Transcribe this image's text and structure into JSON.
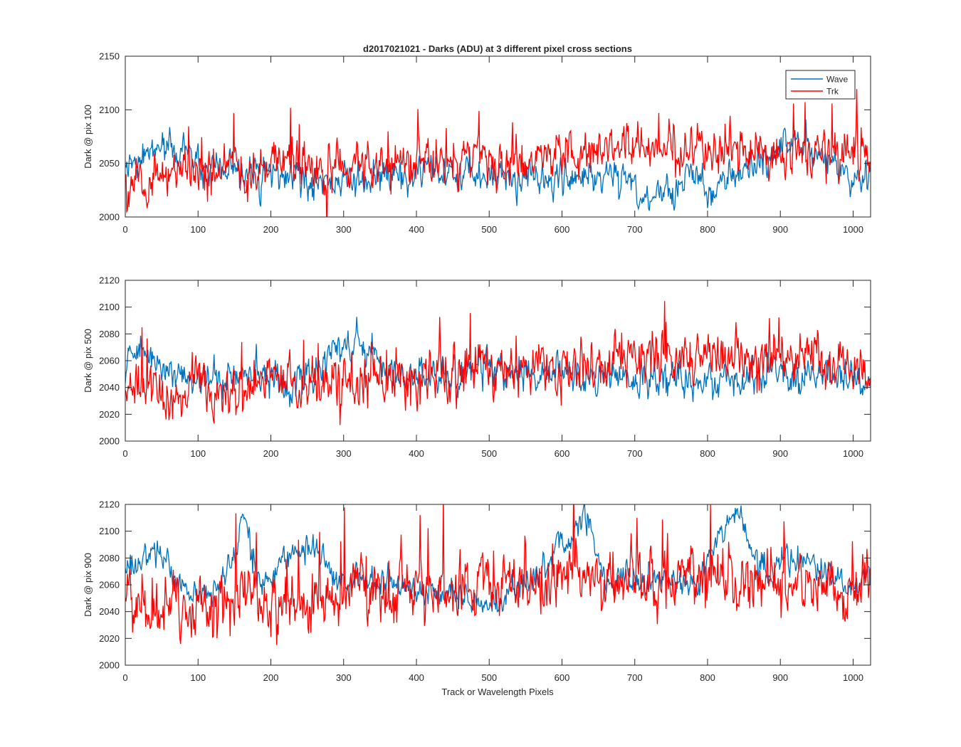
{
  "figure": {
    "title": "d2017021021 - Darks (ADU) at 3 different pixel cross sections",
    "xlabel": "Track or Wavelength Pixels"
  },
  "legend": {
    "position": "top-right",
    "entries": [
      {
        "name": "Wave",
        "color": "#0072BD"
      },
      {
        "name": "Trk",
        "color": "#FF0000"
      }
    ]
  },
  "chart_data": [
    {
      "type": "line",
      "ylabel": "Dark @ pix 100",
      "xlim": [
        0,
        1024
      ],
      "ylim": [
        2000,
        2150
      ],
      "xticks": [
        0,
        100,
        200,
        300,
        400,
        500,
        600,
        700,
        800,
        900,
        1000
      ],
      "yticks": [
        2000,
        2050,
        2100,
        2150
      ],
      "grid": false,
      "series": [
        {
          "name": "Wave",
          "color": "#0072BD",
          "noise": 7,
          "x": [
            0,
            10,
            20,
            30,
            40,
            50,
            60,
            70,
            80,
            88,
            95,
            100,
            150,
            200,
            240,
            250,
            300,
            400,
            410,
            450,
            500,
            550,
            600,
            650,
            690,
            700,
            720,
            730,
            760,
            775,
            790,
            800,
            850,
            880,
            915,
            925,
            950,
            1000,
            1024
          ],
          "values": [
            2047,
            2043,
            2050,
            2060,
            2062,
            2065,
            2062,
            2060,
            2063,
            2068,
            2055,
            2042,
            2040,
            2040,
            2035,
            2030,
            2033,
            2038,
            2040,
            2038,
            2040,
            2037,
            2035,
            2040,
            2035,
            2030,
            2015,
            2020,
            2030,
            2045,
            2030,
            2022,
            2045,
            2055,
            2070,
            2068,
            2060,
            2035,
            2036
          ]
        },
        {
          "name": "Trk",
          "color": "#FF0000",
          "noise": 10,
          "x": [
            0,
            20,
            50,
            100,
            200,
            300,
            400,
            500,
            600,
            700,
            800,
            900,
            1024
          ],
          "values": [
            2040,
            2040,
            2038,
            2040,
            2045,
            2048,
            2050,
            2055,
            2058,
            2065,
            2062,
            2060,
            2060
          ]
        }
      ]
    },
    {
      "type": "line",
      "ylabel": "Dark @ pix 500",
      "xlim": [
        0,
        1024
      ],
      "ylim": [
        2000,
        2120
      ],
      "xticks": [
        0,
        100,
        200,
        300,
        400,
        500,
        600,
        700,
        800,
        900,
        1000
      ],
      "yticks": [
        2000,
        2020,
        2040,
        2060,
        2080,
        2100,
        2120
      ],
      "grid": false,
      "series": [
        {
          "name": "Wave",
          "color": "#0072BD",
          "noise": 6,
          "x": [
            0,
            15,
            30,
            45,
            60,
            100,
            150,
            200,
            250,
            280,
            300,
            330,
            350,
            400,
            500,
            600,
            700,
            800,
            900,
            1000,
            1024
          ],
          "values": [
            2058,
            2065,
            2068,
            2058,
            2050,
            2048,
            2048,
            2045,
            2045,
            2060,
            2072,
            2070,
            2058,
            2045,
            2055,
            2050,
            2045,
            2045,
            2050,
            2045,
            2045
          ]
        },
        {
          "name": "Trk",
          "color": "#FF0000",
          "noise": 9,
          "x": [
            0,
            100,
            200,
            300,
            400,
            500,
            600,
            650,
            700,
            800,
            900,
            1000,
            1024
          ],
          "values": [
            2042,
            2038,
            2042,
            2045,
            2048,
            2055,
            2055,
            2058,
            2065,
            2063,
            2062,
            2055,
            2050
          ]
        }
      ]
    },
    {
      "type": "line",
      "ylabel": "Dark @ pix 900",
      "xlim": [
        0,
        1024
      ],
      "ylim": [
        2000,
        2120
      ],
      "xticks": [
        0,
        100,
        200,
        300,
        400,
        500,
        600,
        700,
        800,
        900,
        1000
      ],
      "yticks": [
        2000,
        2020,
        2040,
        2060,
        2080,
        2100,
        2120
      ],
      "grid": false,
      "series": [
        {
          "name": "Wave",
          "color": "#0072BD",
          "noise": 5,
          "x": [
            0,
            20,
            40,
            60,
            70,
            85,
            100,
            120,
            135,
            150,
            160,
            170,
            180,
            200,
            215,
            230,
            245,
            260,
            270,
            290,
            350,
            400,
            450,
            500,
            550,
            580,
            600,
            620,
            630,
            640,
            660,
            700,
            750,
            790,
            810,
            830,
            845,
            860,
            880,
            920,
            950,
            1000,
            1024
          ],
          "values": [
            2070,
            2078,
            2082,
            2080,
            2060,
            2055,
            2050,
            2058,
            2065,
            2085,
            2102,
            2100,
            2068,
            2062,
            2080,
            2088,
            2085,
            2092,
            2078,
            2065,
            2060,
            2055,
            2055,
            2042,
            2060,
            2075,
            2090,
            2098,
            2108,
            2098,
            2060,
            2065,
            2062,
            2065,
            2092,
            2110,
            2108,
            2085,
            2070,
            2078,
            2075,
            2055,
            2075
          ]
        },
        {
          "name": "Trk",
          "color": "#FF0000",
          "noise": 10,
          "x": [
            0,
            100,
            200,
            300,
            400,
            500,
            600,
            700,
            800,
            900,
            1024
          ],
          "values": [
            2038,
            2045,
            2048,
            2052,
            2055,
            2058,
            2062,
            2066,
            2065,
            2062,
            2058
          ]
        }
      ]
    }
  ]
}
